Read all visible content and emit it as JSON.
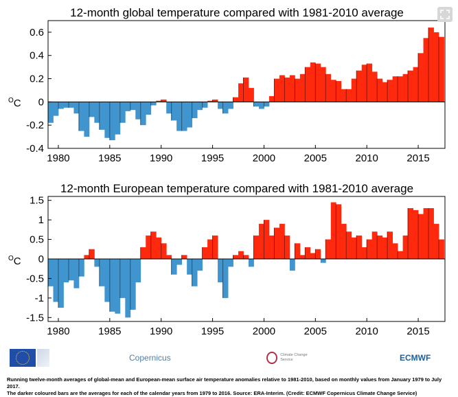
{
  "header": {
    "expand_icon": "expand-icon"
  },
  "chart_data": [
    {
      "type": "bar",
      "title": "12-month global temperature compared with 1981-2010 average",
      "ylabel": "°C",
      "ylim": [
        -0.4,
        0.7
      ],
      "xlim": [
        1979,
        2017.6
      ],
      "yticks": [
        -0.4,
        -0.2,
        0,
        0.2,
        0.4,
        0.6
      ],
      "ytick_labels": [
        "-0.4",
        "-0.2",
        "0",
        "0.2",
        "0.4",
        "0.6"
      ],
      "xticks": [
        1980,
        1985,
        1990,
        1995,
        2000,
        2005,
        2010,
        2015
      ],
      "xtick_labels": [
        "1980",
        "1985",
        "1990",
        "1995",
        "2000",
        "2005",
        "2010",
        "2015"
      ],
      "positive_color": "#ff2a0e",
      "negative_color": "#4195cf",
      "grid": false,
      "series": [
        {
          "x": [
            1979.0,
            1979.5,
            1980.0,
            1980.5,
            1981.0,
            1981.5,
            1982.0,
            1982.5,
            1983.0,
            1983.5,
            1984.0,
            1984.5,
            1985.0,
            1985.5,
            1986.0,
            1986.5,
            1987.0,
            1987.5,
            1988.0,
            1988.5,
            1989.0,
            1989.5,
            1990.0,
            1990.5,
            1991.0,
            1991.5,
            1992.0,
            1992.5,
            1993.0,
            1993.5,
            1994.0,
            1994.5,
            1995.0,
            1995.5,
            1996.0,
            1996.5,
            1997.0,
            1997.5,
            1998.0,
            1998.5,
            1999.0,
            1999.5,
            2000.0,
            2000.5,
            2001.0,
            2001.5,
            2002.0,
            2002.5,
            2003.0,
            2003.5,
            2004.0,
            2004.5,
            2005.0,
            2005.5,
            2006.0,
            2006.5,
            2007.0,
            2007.5,
            2008.0,
            2008.5,
            2009.0,
            2009.5,
            2010.0,
            2010.5,
            2011.0,
            2011.5,
            2012.0,
            2012.5,
            2013.0,
            2013.5,
            2014.0,
            2014.5,
            2015.0,
            2015.5,
            2016.0,
            2016.5,
            2017.0
          ],
          "values": [
            -0.18,
            -0.12,
            -0.06,
            -0.05,
            -0.05,
            -0.1,
            -0.25,
            -0.3,
            -0.13,
            -0.18,
            -0.24,
            -0.31,
            -0.33,
            -0.28,
            -0.18,
            -0.08,
            -0.07,
            -0.15,
            -0.2,
            -0.11,
            -0.03,
            0.01,
            0.02,
            -0.1,
            -0.16,
            -0.25,
            -0.25,
            -0.22,
            -0.14,
            -0.07,
            -0.05,
            0.01,
            0.02,
            -0.06,
            -0.1,
            -0.06,
            0.04,
            0.16,
            0.21,
            0.12,
            -0.04,
            -0.06,
            -0.04,
            0.05,
            0.2,
            0.23,
            0.21,
            0.23,
            0.2,
            0.24,
            0.3,
            0.34,
            0.33,
            0.3,
            0.24,
            0.19,
            0.18,
            0.11,
            0.11,
            0.2,
            0.27,
            0.32,
            0.33,
            0.26,
            0.2,
            0.17,
            0.19,
            0.22,
            0.22,
            0.24,
            0.27,
            0.3,
            0.42,
            0.55,
            0.64,
            0.6,
            0.56
          ]
        }
      ]
    },
    {
      "type": "bar",
      "title": "12-month European temperature compared with 1981-2010 average",
      "ylabel": "°C",
      "ylim": [
        -1.6,
        1.6
      ],
      "xlim": [
        1979,
        2017.6
      ],
      "yticks": [
        -1.5,
        -1,
        -0.5,
        0,
        0.5,
        1,
        1.5
      ],
      "ytick_labels": [
        "-1.5",
        "-1",
        "-0.5",
        "0",
        "0.5",
        "1",
        "1.5"
      ],
      "xticks": [
        1980,
        1985,
        1990,
        1995,
        2000,
        2005,
        2010,
        2015
      ],
      "xtick_labels": [
        "1980",
        "1985",
        "1990",
        "1995",
        "2000",
        "2005",
        "2010",
        "2015"
      ],
      "positive_color": "#ff2a0e",
      "negative_color": "#4195cf",
      "grid": false,
      "series": [
        {
          "x": [
            1979.0,
            1979.5,
            1980.0,
            1980.5,
            1981.0,
            1981.5,
            1982.0,
            1982.5,
            1983.0,
            1983.5,
            1984.0,
            1984.5,
            1985.0,
            1985.5,
            1986.0,
            1986.5,
            1987.0,
            1987.5,
            1988.0,
            1988.5,
            1989.0,
            1989.5,
            1990.0,
            1990.5,
            1991.0,
            1991.5,
            1992.0,
            1992.5,
            1993.0,
            1993.5,
            1994.0,
            1994.5,
            1995.0,
            1995.5,
            1996.0,
            1996.5,
            1997.0,
            1997.5,
            1998.0,
            1998.5,
            1999.0,
            1999.5,
            2000.0,
            2000.5,
            2001.0,
            2001.5,
            2002.0,
            2002.5,
            2003.0,
            2003.5,
            2004.0,
            2004.5,
            2005.0,
            2005.5,
            2006.0,
            2006.5,
            2007.0,
            2007.5,
            2008.0,
            2008.5,
            2009.0,
            2009.5,
            2010.0,
            2010.5,
            2011.0,
            2011.5,
            2012.0,
            2012.5,
            2013.0,
            2013.5,
            2014.0,
            2014.5,
            2015.0,
            2015.5,
            2016.0,
            2016.5,
            2017.0
          ],
          "values": [
            -0.7,
            -1.1,
            -1.25,
            -0.6,
            -0.55,
            -0.75,
            -0.45,
            0.1,
            0.25,
            -0.2,
            -0.7,
            -1.1,
            -1.35,
            -1.4,
            -1.0,
            -1.5,
            -1.3,
            -0.6,
            0.3,
            0.6,
            0.7,
            0.55,
            0.4,
            0.1,
            -0.4,
            -0.15,
            0.1,
            -0.4,
            -0.7,
            -0.3,
            0.3,
            0.5,
            0.6,
            -0.6,
            -1.0,
            -0.2,
            0.1,
            0.2,
            0.1,
            -0.2,
            0.6,
            0.9,
            1.0,
            0.6,
            0.8,
            0.9,
            0.6,
            -0.3,
            0.4,
            0.1,
            0.3,
            0.15,
            0.25,
            -0.1,
            0.5,
            1.45,
            1.4,
            0.9,
            0.7,
            0.55,
            0.6,
            0.3,
            0.5,
            0.7,
            0.6,
            0.55,
            0.7,
            0.4,
            0.2,
            0.6,
            1.3,
            1.25,
            1.15,
            1.3,
            1.3,
            0.9,
            0.5
          ]
        }
      ]
    }
  ],
  "logos": {
    "eu": {
      "icon": "eu-flag-icon",
      "text": "European Commission"
    },
    "copernicus": {
      "icon": "copernicus-logo-icon",
      "text": "Copernicus"
    },
    "c3s": {
      "icon": "c3s-logo-icon",
      "text": "Climate Change Service"
    },
    "ecmwf": {
      "icon": "ecmwf-logo-icon",
      "text": "ECMWF"
    }
  },
  "caption": {
    "line1": "Running twelve-month averages of global-mean and European-mean surface air temperature anomalies relative to 1981-2010, based on monthly values from January 1979 to July 2017.",
    "line2": "The darker coloured bars are the averages for each of the calendar years from 1979 to 2016.  Source: ERA-Interim. (Credit: ECMWF Copernicus Climate Change Service)"
  }
}
